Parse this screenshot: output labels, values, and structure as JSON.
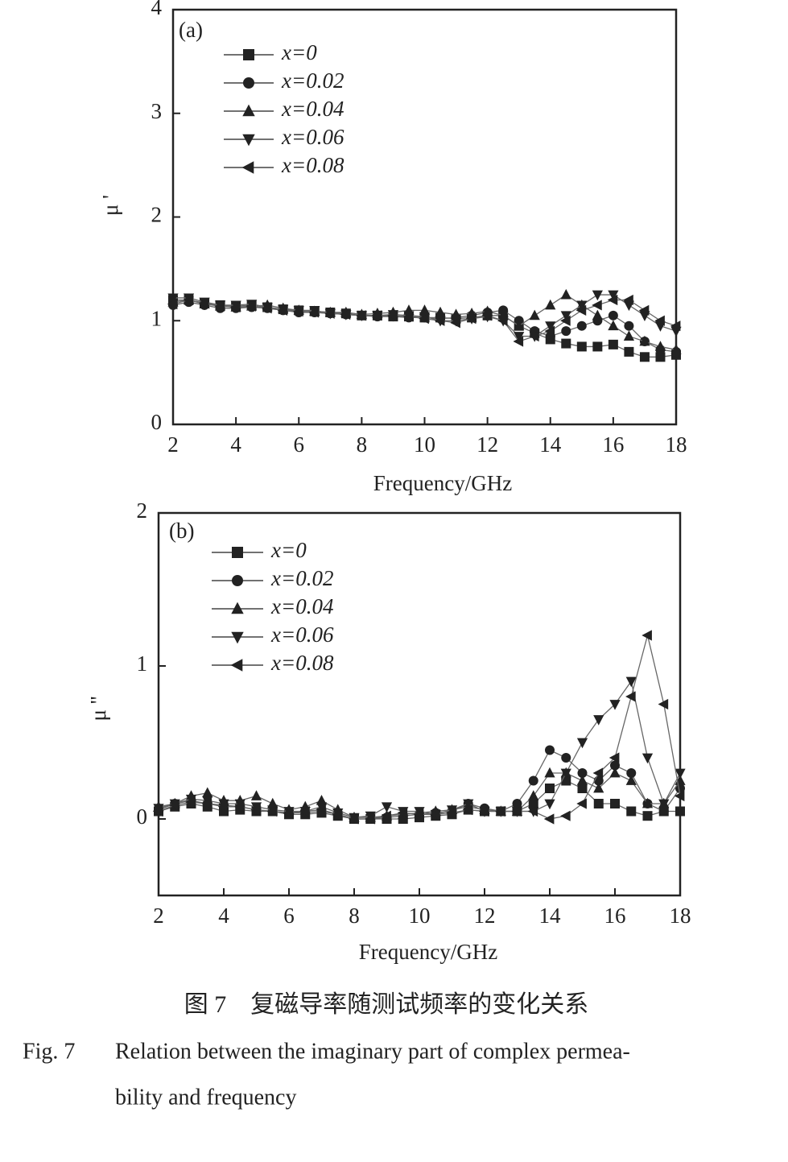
{
  "chart_data": [
    {
      "type": "line",
      "panel_label": "(a)",
      "xlabel": "Frequency/GHz",
      "ylabel": "μ '",
      "xlim": [
        2,
        18
      ],
      "xticks": [
        2,
        4,
        6,
        8,
        10,
        12,
        14,
        16,
        18
      ],
      "ylim": [
        0,
        4
      ],
      "yticks": [
        0,
        1,
        2,
        3,
        4
      ],
      "x": [
        2,
        2.5,
        3,
        3.5,
        4,
        4.5,
        5,
        5.5,
        6,
        6.5,
        7,
        7.5,
        8,
        8.5,
        9,
        9.5,
        10,
        10.5,
        11,
        11.5,
        12,
        12.5,
        13,
        13.5,
        14,
        14.5,
        15,
        15.5,
        16,
        16.5,
        17,
        17.5,
        18
      ],
      "series": [
        {
          "name": "x=0",
          "color": "#222222",
          "marker": "square",
          "values": [
            1.2,
            1.2,
            1.17,
            1.15,
            1.14,
            1.15,
            1.13,
            1.11,
            1.1,
            1.09,
            1.08,
            1.07,
            1.05,
            1.05,
            1.04,
            1.04,
            1.03,
            1.03,
            1.02,
            1.03,
            1.05,
            1.05,
            0.95,
            0.88,
            0.82,
            0.78,
            0.75,
            0.75,
            0.77,
            0.7,
            0.65,
            0.65,
            0.67
          ]
        },
        {
          "name": "x=0.02",
          "color": "#222222",
          "marker": "circle",
          "values": [
            1.15,
            1.18,
            1.15,
            1.12,
            1.12,
            1.13,
            1.12,
            1.1,
            1.08,
            1.08,
            1.07,
            1.06,
            1.05,
            1.04,
            1.04,
            1.03,
            1.03,
            1.02,
            1.03,
            1.05,
            1.08,
            1.1,
            1.0,
            0.9,
            0.85,
            0.9,
            0.95,
            1.0,
            1.05,
            0.95,
            0.8,
            0.72,
            0.7
          ]
        },
        {
          "name": "x=0.04",
          "color": "#222222",
          "marker": "triangle-up",
          "values": [
            1.18,
            1.2,
            1.16,
            1.14,
            1.13,
            1.14,
            1.15,
            1.12,
            1.1,
            1.09,
            1.08,
            1.08,
            1.06,
            1.07,
            1.08,
            1.1,
            1.1,
            1.08,
            1.06,
            1.07,
            1.09,
            1.05,
            0.95,
            1.05,
            1.15,
            1.25,
            1.15,
            1.05,
            0.95,
            0.85,
            0.8,
            0.75,
            0.72
          ]
        },
        {
          "name": "x=0.06",
          "color": "#222222",
          "marker": "triangle-down",
          "values": [
            1.22,
            1.22,
            1.18,
            1.15,
            1.15,
            1.16,
            1.13,
            1.11,
            1.1,
            1.1,
            1.07,
            1.06,
            1.05,
            1.05,
            1.06,
            1.05,
            1.04,
            1.0,
            1.0,
            1.02,
            1.04,
            1.0,
            0.85,
            0.85,
            0.95,
            1.05,
            1.15,
            1.25,
            1.25,
            1.15,
            1.05,
            0.95,
            0.9
          ]
        },
        {
          "name": "x=0.08",
          "color": "#222222",
          "marker": "triangle-left",
          "values": [
            1.16,
            1.2,
            1.17,
            1.14,
            1.13,
            1.14,
            1.12,
            1.1,
            1.09,
            1.08,
            1.07,
            1.06,
            1.05,
            1.05,
            1.05,
            1.04,
            1.02,
            1.0,
            0.98,
            1.02,
            1.05,
            1.0,
            0.8,
            0.85,
            0.9,
            1.0,
            1.1,
            1.15,
            1.2,
            1.2,
            1.1,
            1.0,
            0.95
          ]
        }
      ]
    },
    {
      "type": "line",
      "panel_label": "(b)",
      "xlabel": "Frequency/GHz",
      "ylabel": "μ ''",
      "xlim": [
        2,
        18
      ],
      "xticks": [
        2,
        4,
        6,
        8,
        10,
        12,
        14,
        16,
        18
      ],
      "ylim": [
        -0.5,
        2
      ],
      "yticks": [
        0,
        1,
        2
      ],
      "x": [
        2,
        2.5,
        3,
        3.5,
        4,
        4.5,
        5,
        5.5,
        6,
        6.5,
        7,
        7.5,
        8,
        8.5,
        9,
        9.5,
        10,
        10.5,
        11,
        11.5,
        12,
        12.5,
        13,
        13.5,
        14,
        14.5,
        15,
        15.5,
        16,
        16.5,
        17,
        17.5,
        18
      ],
      "series": [
        {
          "name": "x=0",
          "color": "#222222",
          "marker": "square",
          "values": [
            0.05,
            0.08,
            0.1,
            0.08,
            0.05,
            0.06,
            0.05,
            0.05,
            0.03,
            0.03,
            0.04,
            0.02,
            0.0,
            0.0,
            0.0,
            0.0,
            0.01,
            0.02,
            0.03,
            0.06,
            0.05,
            0.05,
            0.05,
            0.1,
            0.2,
            0.25,
            0.2,
            0.1,
            0.1,
            0.05,
            0.02,
            0.05,
            0.05
          ]
        },
        {
          "name": "x=0.02",
          "color": "#222222",
          "marker": "circle",
          "values": [
            0.06,
            0.1,
            0.12,
            0.1,
            0.09,
            0.08,
            0.06,
            0.05,
            0.04,
            0.04,
            0.05,
            0.03,
            0.0,
            0.0,
            0.01,
            0.02,
            0.03,
            0.04,
            0.05,
            0.1,
            0.07,
            0.05,
            0.1,
            0.25,
            0.45,
            0.4,
            0.3,
            0.25,
            0.35,
            0.3,
            0.1,
            0.05,
            0.2
          ]
        },
        {
          "name": "x=0.04",
          "color": "#222222",
          "marker": "triangle-up",
          "values": [
            0.08,
            0.1,
            0.15,
            0.17,
            0.12,
            0.12,
            0.15,
            0.1,
            0.06,
            0.08,
            0.12,
            0.06,
            0.01,
            0.01,
            0.02,
            0.03,
            0.04,
            0.05,
            0.06,
            0.08,
            0.06,
            0.05,
            0.05,
            0.15,
            0.3,
            0.3,
            0.25,
            0.2,
            0.3,
            0.25,
            0.1,
            0.1,
            0.25
          ]
        },
        {
          "name": "x=0.06",
          "color": "#222222",
          "marker": "triangle-down",
          "values": [
            0.07,
            0.1,
            0.13,
            0.12,
            0.1,
            0.1,
            0.08,
            0.06,
            0.05,
            0.05,
            0.08,
            0.04,
            0.01,
            0.02,
            0.08,
            0.05,
            0.05,
            0.03,
            0.06,
            0.1,
            0.05,
            0.05,
            0.05,
            0.05,
            0.1,
            0.3,
            0.5,
            0.65,
            0.75,
            0.9,
            0.4,
            0.1,
            0.3
          ]
        },
        {
          "name": "x=0.08",
          "color": "#222222",
          "marker": "triangle-left",
          "values": [
            0.05,
            0.09,
            0.11,
            0.1,
            0.08,
            0.08,
            0.06,
            0.05,
            0.04,
            0.05,
            0.06,
            0.03,
            0.0,
            0.0,
            0.02,
            0.04,
            0.03,
            0.03,
            0.04,
            0.06,
            0.05,
            0.05,
            0.05,
            0.05,
            0.0,
            0.02,
            0.1,
            0.3,
            0.4,
            0.8,
            1.2,
            0.75,
            0.15
          ]
        }
      ]
    }
  ],
  "caption": {
    "chinese": "图 7　复磁导率随测试频率的变化关系",
    "figure_label": "Fig. 7",
    "lines": [
      "Relation between the imaginary part of complex permea-",
      "bility and frequency"
    ]
  }
}
